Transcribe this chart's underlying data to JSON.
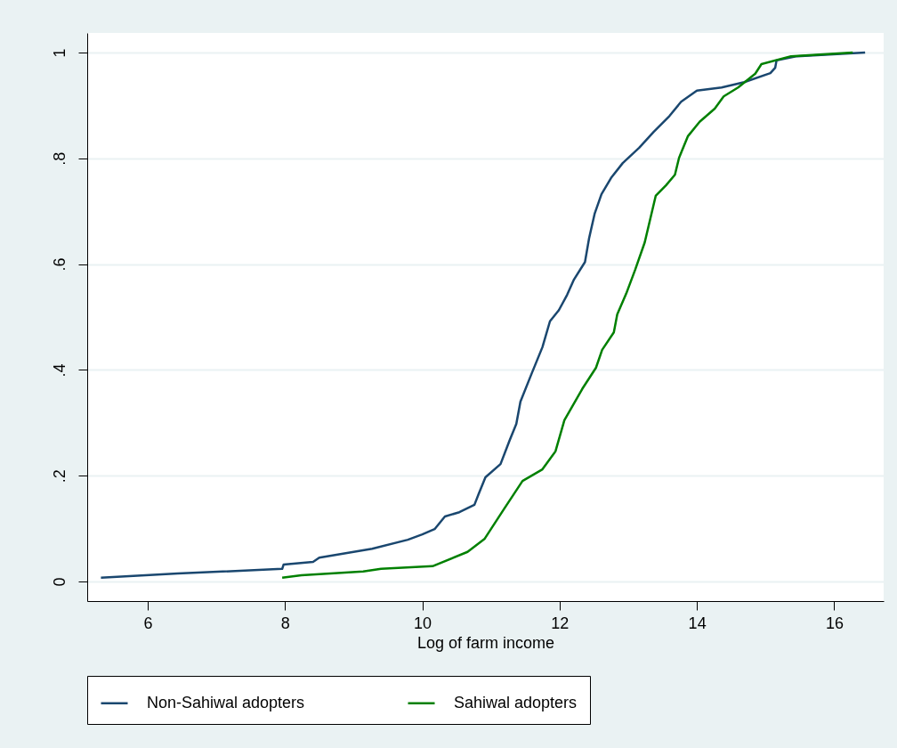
{
  "chart_data": {
    "type": "line",
    "xlabel": "Log of farm income",
    "xlim": [
      5.12,
      16.72
    ],
    "xticks": [
      6,
      8,
      10,
      12,
      14,
      16
    ],
    "ylim": [
      -0.037,
      1.037
    ],
    "yticks": [
      {
        "value": 0,
        "label": "0"
      },
      {
        "value": 0.2,
        "label": ".2"
      },
      {
        "value": 0.4,
        "label": ".4"
      },
      {
        "value": 0.6,
        "label": ".6"
      },
      {
        "value": 0.8,
        "label": ".8"
      },
      {
        "value": 1,
        "label": "1"
      }
    ],
    "grid": "y",
    "legend": "bottom",
    "line_style": "solid",
    "marker": "none",
    "series": [
      {
        "name": "Non-Sahiwal adopters",
        "color": "#1a476f",
        "x": [
          5.32,
          6.44,
          7.96,
          7.98,
          8.41,
          8.5,
          9.27,
          9.79,
          10.0,
          10.18,
          10.33,
          10.54,
          10.76,
          10.82,
          10.92,
          11.14,
          11.27,
          11.37,
          11.43,
          11.59,
          11.75,
          11.86,
          11.99,
          12.11,
          12.21,
          12.37,
          12.43,
          12.51,
          12.61,
          12.75,
          12.92,
          13.16,
          13.37,
          13.6,
          13.77,
          14.0,
          14.36,
          14.69,
          15.07,
          15.14,
          15.16,
          15.46,
          16.45
        ],
        "values": [
          0.007,
          0.015,
          0.024,
          0.032,
          0.037,
          0.045,
          0.062,
          0.079,
          0.089,
          0.099,
          0.123,
          0.131,
          0.145,
          0.165,
          0.197,
          0.222,
          0.266,
          0.298,
          0.34,
          0.392,
          0.443,
          0.492,
          0.513,
          0.542,
          0.571,
          0.604,
          0.649,
          0.695,
          0.732,
          0.763,
          0.791,
          0.82,
          0.85,
          0.88,
          0.907,
          0.928,
          0.934,
          0.944,
          0.961,
          0.971,
          0.985,
          0.993,
          1.0
        ]
      },
      {
        "name": "Sahiwal adopters",
        "color": "#008000",
        "x": [
          7.96,
          8.24,
          9.14,
          9.4,
          10.15,
          10.66,
          10.91,
          11.18,
          11.46,
          11.75,
          11.94,
          12.07,
          12.33,
          12.53,
          12.62,
          12.79,
          12.84,
          12.97,
          13.1,
          13.24,
          13.4,
          13.55,
          13.68,
          13.74,
          13.87,
          14.04,
          14.26,
          14.39,
          14.6,
          14.85,
          14.94,
          15.37,
          16.27
        ],
        "values": [
          0.007,
          0.012,
          0.019,
          0.024,
          0.029,
          0.056,
          0.081,
          0.135,
          0.19,
          0.212,
          0.246,
          0.305,
          0.364,
          0.404,
          0.438,
          0.471,
          0.505,
          0.544,
          0.589,
          0.641,
          0.729,
          0.749,
          0.769,
          0.801,
          0.842,
          0.869,
          0.894,
          0.917,
          0.934,
          0.96,
          0.978,
          0.993,
          1.0
        ]
      }
    ]
  }
}
